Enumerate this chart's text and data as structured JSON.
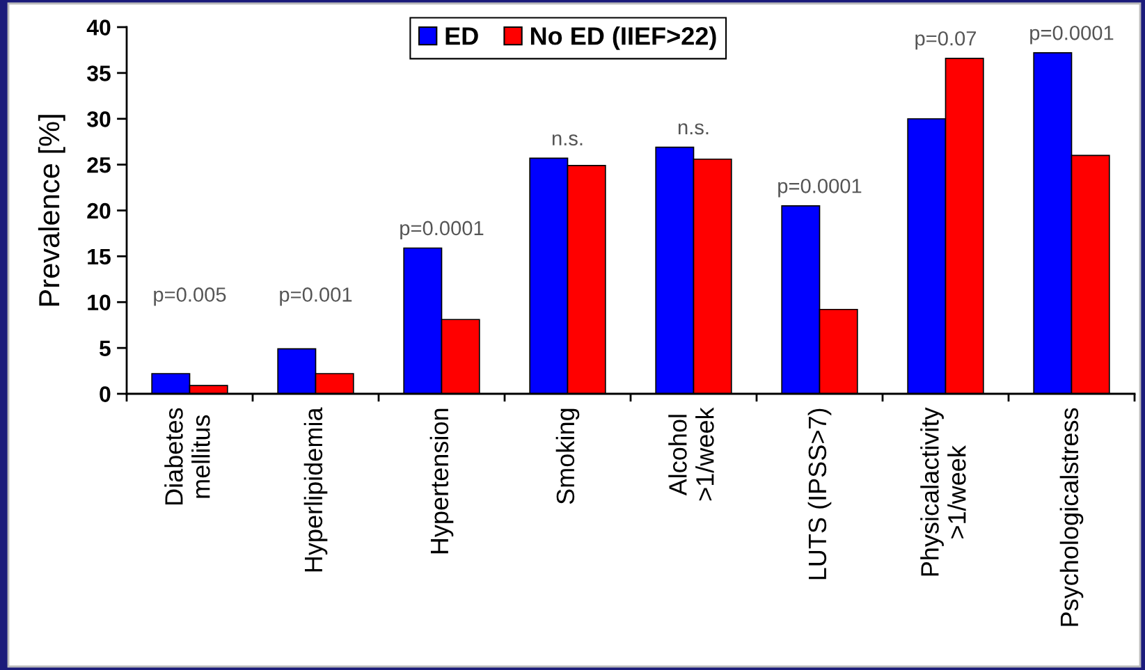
{
  "chart_data": {
    "type": "bar",
    "ylabel": "Prevalence [%]",
    "categories": [
      "Diabetes\nmellitus",
      "Hyperlipidemia",
      "Hypertension",
      "Smoking",
      "Alcohol\n>1/week",
      "LUTS (IPSS>7)",
      "Physicalactivity\n>1/week",
      "Psychologicalstress"
    ],
    "series": [
      {
        "name": "ED",
        "color": "#0000ff",
        "values": [
          2.2,
          4.9,
          15.9,
          25.7,
          26.9,
          20.5,
          30.0,
          37.2
        ]
      },
      {
        "name": "No ED (IIEF>22)",
        "color": "#ff0000",
        "values": [
          0.9,
          2.2,
          8.1,
          24.9,
          25.6,
          9.2,
          36.6,
          26.0
        ]
      }
    ],
    "ylim": [
      0,
      40
    ],
    "yticks": [
      0,
      5,
      10,
      15,
      20,
      25,
      30,
      35,
      40
    ],
    "legend": "top",
    "annotations": [
      "p=0.005",
      "p=0.001",
      "p=0.0001",
      "n.s.",
      "n.s.",
      "p=0.0001",
      "p=0.07",
      "p=0.0001"
    ]
  }
}
